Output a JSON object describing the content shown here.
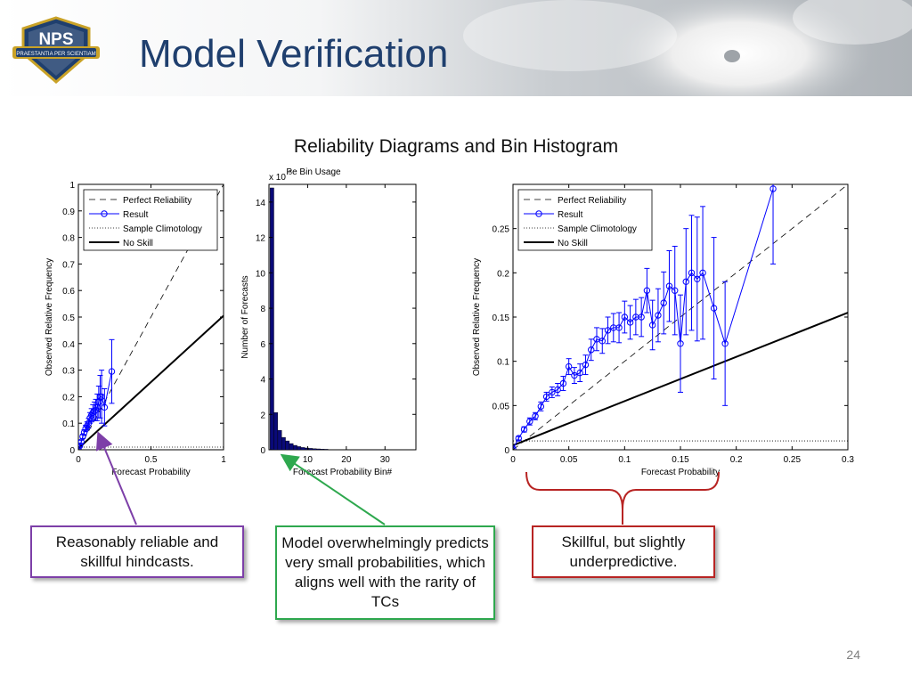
{
  "slide": {
    "title": "Model Verification",
    "subtitle": "Reliability Diagrams and Bin Histogram",
    "page_number": "24",
    "logo_text": "NPS",
    "logo_motto": "PRAESTANTIA PER SCIENTIAM",
    "colors": {
      "title": "#1f3f6e",
      "purple": "#7d3fa8",
      "green": "#2ea84e",
      "red": "#b82423",
      "series": "#0000ff"
    }
  },
  "callouts": {
    "left": "Reasonably reliable and skillful hindcasts.",
    "middle": "Model overwhelmingly predicts very small probabilities, which aligns well with the rarity of TCs",
    "right": "Skillful, but slightly underpredictive."
  },
  "chart_data": [
    {
      "type": "line",
      "title": "",
      "xlabel": "Forecast Probability",
      "ylabel": "Observed Relative Frequency",
      "xlim": [
        0,
        1
      ],
      "ylim": [
        0,
        1
      ],
      "xticks": [
        "0",
        "0.5",
        "1"
      ],
      "yticks": [
        "0",
        "0.1",
        "0.2",
        "0.3",
        "0.4",
        "0.5",
        "0.6",
        "0.7",
        "0.8",
        "0.9",
        "1"
      ],
      "legend": [
        "Perfect Reliability",
        "Result",
        "Sample Climotology",
        "No Skill"
      ],
      "legend_position": "top-left",
      "climatology": 0.01,
      "no_skill": {
        "x": [
          0,
          1
        ],
        "y": [
          0.005,
          0.505
        ]
      },
      "series": [
        {
          "name": "Result",
          "x": [
            0.0,
            0.01,
            0.02,
            0.03,
            0.04,
            0.05,
            0.06,
            0.07,
            0.08,
            0.09,
            0.1,
            0.11,
            0.12,
            0.13,
            0.14,
            0.15,
            0.16,
            0.18,
            0.23
          ],
          "y": [
            0.002,
            0.015,
            0.03,
            0.05,
            0.065,
            0.08,
            0.09,
            0.1,
            0.12,
            0.13,
            0.14,
            0.145,
            0.15,
            0.16,
            0.18,
            0.2,
            0.2,
            0.16,
            0.295
          ],
          "err": [
            0.002,
            0.004,
            0.006,
            0.008,
            0.01,
            0.012,
            0.015,
            0.018,
            0.02,
            0.025,
            0.03,
            0.035,
            0.04,
            0.05,
            0.06,
            0.08,
            0.1,
            0.07,
            0.12
          ]
        }
      ]
    },
    {
      "type": "bar",
      "title": "Pe Bin Usage",
      "xlabel": "Forecast Probability Bin#",
      "ylabel": "Number of Forecasts",
      "scale_label": "x 10",
      "scale_exponent": "5",
      "xlim": [
        0,
        38
      ],
      "ylim": [
        0,
        15
      ],
      "xticks": [
        "10",
        "20",
        "30"
      ],
      "yticks": [
        "0",
        "2",
        "4",
        "6",
        "8",
        "10",
        "12",
        "14"
      ],
      "x": [
        1,
        2,
        3,
        4,
        5,
        6,
        7,
        8,
        9,
        10,
        11,
        12,
        13,
        14,
        15
      ],
      "values": [
        14.8,
        2.1,
        1.1,
        0.7,
        0.5,
        0.35,
        0.25,
        0.18,
        0.13,
        0.1,
        0.08,
        0.06,
        0.05,
        0.04,
        0.03
      ]
    },
    {
      "type": "line",
      "title": "",
      "xlabel": "Forecast Probability",
      "ylabel": "Observed Relative Frequency",
      "xlim": [
        0,
        0.3
      ],
      "ylim": [
        0,
        0.3
      ],
      "xticks": [
        "0",
        "0.05",
        "0.1",
        "0.15",
        "0.2",
        "0.25",
        "0.3"
      ],
      "yticks": [
        "0",
        "0.05",
        "0.1",
        "0.15",
        "0.2",
        "0.25"
      ],
      "legend": [
        "Perfect Reliability",
        "Result",
        "Sample Climotology",
        "No Skill"
      ],
      "legend_position": "top-left",
      "climatology": 0.01,
      "no_skill": {
        "x": [
          0,
          0.3
        ],
        "y": [
          0.005,
          0.155
        ]
      },
      "series": [
        {
          "name": "Result",
          "x": [
            0.0,
            0.005,
            0.01,
            0.015,
            0.02,
            0.025,
            0.03,
            0.035,
            0.04,
            0.045,
            0.05,
            0.055,
            0.06,
            0.065,
            0.07,
            0.075,
            0.08,
            0.085,
            0.09,
            0.095,
            0.1,
            0.105,
            0.11,
            0.115,
            0.12,
            0.125,
            0.13,
            0.135,
            0.14,
            0.145,
            0.15,
            0.155,
            0.16,
            0.165,
            0.17,
            0.18,
            0.19,
            0.233
          ],
          "y": [
            0.001,
            0.013,
            0.023,
            0.032,
            0.038,
            0.049,
            0.06,
            0.065,
            0.068,
            0.075,
            0.094,
            0.084,
            0.087,
            0.096,
            0.113,
            0.125,
            0.123,
            0.135,
            0.138,
            0.138,
            0.15,
            0.144,
            0.15,
            0.15,
            0.18,
            0.141,
            0.152,
            0.166,
            0.185,
            0.18,
            0.12,
            0.19,
            0.2,
            0.193,
            0.2,
            0.16,
            0.12,
            0.295
          ],
          "err": [
            0.001,
            0.002,
            0.003,
            0.004,
            0.004,
            0.005,
            0.005,
            0.006,
            0.007,
            0.008,
            0.009,
            0.009,
            0.01,
            0.011,
            0.012,
            0.013,
            0.014,
            0.015,
            0.016,
            0.017,
            0.018,
            0.019,
            0.02,
            0.022,
            0.025,
            0.028,
            0.03,
            0.035,
            0.04,
            0.05,
            0.055,
            0.06,
            0.065,
            0.07,
            0.075,
            0.08,
            0.07,
            0.085
          ]
        }
      ]
    }
  ]
}
